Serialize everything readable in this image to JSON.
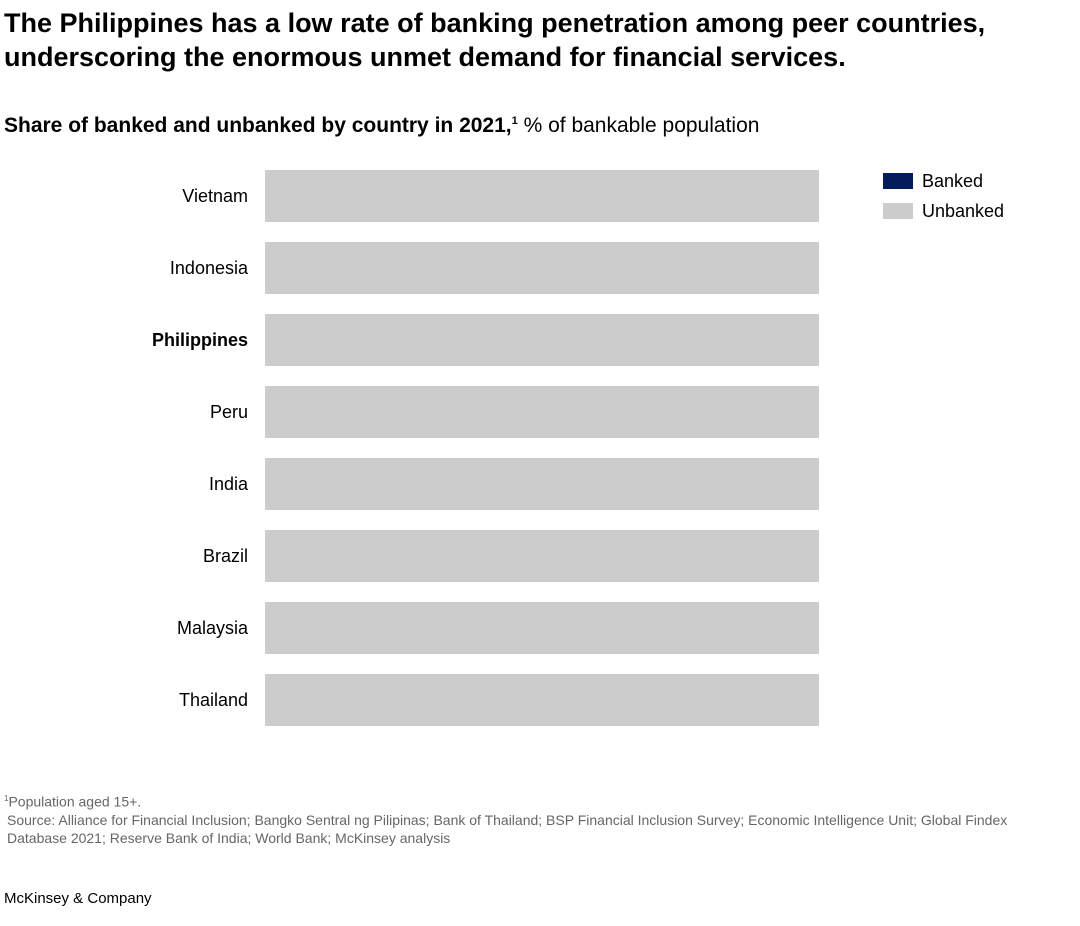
{
  "title": "The Philippines has a low rate of banking penetration among peer countries, underscoring the enormous unmet demand for financial services.",
  "subtitle_bold": "Share of banked and unbanked by country in 2021,",
  "subtitle_sup": "1",
  "subtitle_unit": " % of bankable population",
  "footnote_sup": "1",
  "footnote": "Population aged 15+.",
  "source": "Source: Alliance for Financial Inclusion; Bangko Sentral ng Pilipinas; Bank of Thailand; BSP Financial Inclusion Survey; Economic Intelligence Unit; Global Findex Database 2021; Reserve Bank of India; World Bank; McKinsey analysis",
  "brand": "McKinsey & Company",
  "chart_data": {
    "type": "bar",
    "orientation": "horizontal-stacked",
    "categories": [
      "Vietnam",
      "Indonesia",
      "Philippines",
      "Peru",
      "India",
      "Brazil",
      "Malaysia",
      "Thailand"
    ],
    "highlight": "Philippines",
    "series": [
      {
        "name": "Banked",
        "color": "#051c5c",
        "values": [
          0,
          0,
          0,
          0,
          0,
          0,
          0,
          0
        ]
      },
      {
        "name": "Unbanked",
        "color": "#cccccc",
        "values": [
          100,
          100,
          100,
          100,
          100,
          100,
          100,
          100
        ]
      }
    ],
    "xlim": [
      0,
      100
    ],
    "legend_position": "top-right"
  }
}
